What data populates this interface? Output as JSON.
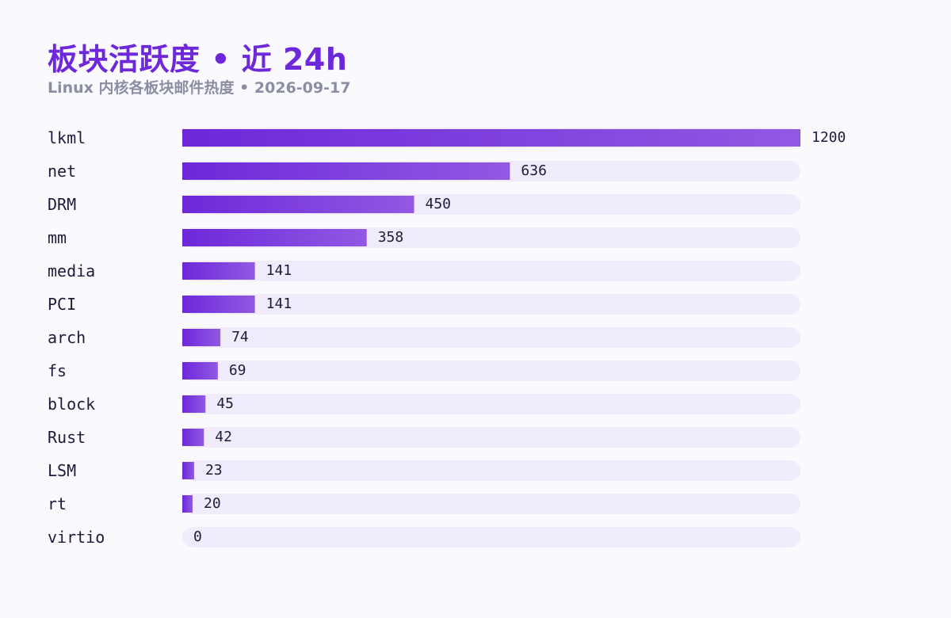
{
  "header": {
    "title": "板块活跃度 • 近 24h",
    "subtitle": "Linux 内核各板块邮件热度 • 2026-09-17"
  },
  "chart_data": {
    "type": "bar",
    "orientation": "horizontal",
    "categories": [
      "lkml",
      "net",
      "DRM",
      "mm",
      "media",
      "PCI",
      "arch",
      "fs",
      "block",
      "Rust",
      "LSM",
      "rt",
      "virtio"
    ],
    "values": [
      1200,
      636,
      450,
      358,
      141,
      141,
      74,
      69,
      45,
      42,
      23,
      20,
      0
    ],
    "xlim": [
      0,
      1200
    ],
    "grid": false,
    "legend": "none",
    "colors": {
      "bar_start": "#6d28d9",
      "bar_end": "#9358e3",
      "track": "#f1ecfc"
    }
  }
}
